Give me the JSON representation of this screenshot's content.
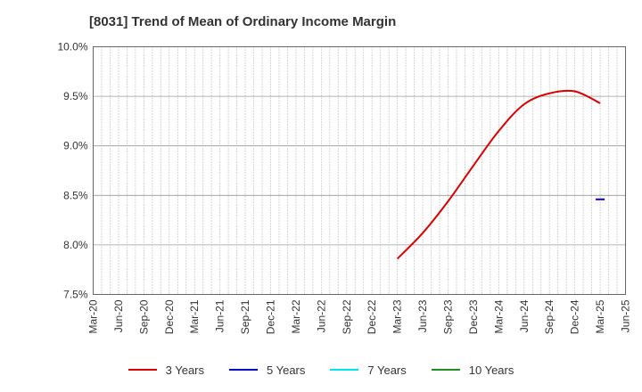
{
  "chart_data": {
    "type": "line",
    "title": "[8031]  Trend of Mean of Ordinary Income Margin",
    "xlabel": "",
    "ylabel": "",
    "y_tick_labels": [
      "10.0%",
      "9.5%",
      "9.0%",
      "8.5%",
      "8.0%",
      "7.5%"
    ],
    "ylim": [
      7.5,
      10.0
    ],
    "y_ticks": [
      10.0,
      9.5,
      9.0,
      8.5,
      8.0,
      7.5
    ],
    "x_tick_labels": [
      "Mar-20",
      "Jun-20",
      "Sep-20",
      "Dec-20",
      "Mar-21",
      "Jun-21",
      "Sep-21",
      "Dec-21",
      "Mar-22",
      "Jun-22",
      "Sep-22",
      "Dec-22",
      "Mar-23",
      "Jun-23",
      "Sep-23",
      "Dec-23",
      "Mar-24",
      "Jun-24",
      "Sep-24",
      "Dec-24",
      "Mar-25",
      "Jun-25"
    ],
    "grid": true,
    "legend_position": "bottom",
    "series": [
      {
        "name": "3 Years",
        "color": "#dd0000",
        "x": [
          "Mar-23",
          "Jun-23",
          "Sep-23",
          "Dec-23",
          "Mar-24",
          "Jun-24",
          "Sep-24",
          "Dec-24",
          "Mar-25"
        ],
        "values": [
          7.86,
          8.12,
          8.44,
          8.8,
          9.15,
          9.42,
          9.53,
          9.55,
          9.43
        ]
      },
      {
        "name": "5 Years",
        "color": "#0000cc",
        "x": [
          "Mar-25"
        ],
        "values": [
          8.46
        ]
      },
      {
        "name": "7 Years",
        "color": "#00e5ee",
        "x": [],
        "values": []
      },
      {
        "name": "10 Years",
        "color": "#228b22",
        "x": [],
        "values": []
      }
    ]
  }
}
